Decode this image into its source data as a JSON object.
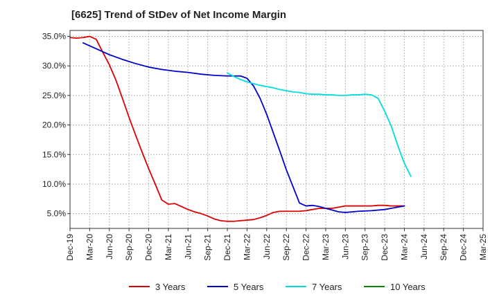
{
  "chart_data": {
    "type": "line",
    "title": "[6625]  Trend of StDev of Net Income Margin",
    "xlabel": "",
    "ylabel": "",
    "x_tick_labels": [
      "Dec-19",
      "Mar-20",
      "Jun-20",
      "Sep-20",
      "Dec-20",
      "Mar-21",
      "Jun-21",
      "Sep-21",
      "Dec-21",
      "Mar-22",
      "Jun-22",
      "Sep-22",
      "Dec-22",
      "Mar-23",
      "Jun-23",
      "Sep-23",
      "Dec-23",
      "Mar-24",
      "Jun-24",
      "Sep-24",
      "Dec-24",
      "Mar-25"
    ],
    "y_ticks": [
      5,
      10,
      15,
      20,
      25,
      30,
      35
    ],
    "y_tick_labels": [
      "5.0%",
      "10.0%",
      "15.0%",
      "20.0%",
      "25.0%",
      "30.0%",
      "35.0%"
    ],
    "ylim": [
      2.5,
      36.0
    ],
    "grid": true,
    "legend_position": "bottom",
    "series": [
      {
        "name": "3 Years",
        "color": "#dd0000",
        "points": [
          [
            0,
            34.8
          ],
          [
            1,
            34.7
          ],
          [
            2,
            34.8
          ],
          [
            3,
            35.0
          ],
          [
            4,
            34.5
          ],
          [
            5,
            32.3
          ],
          [
            6,
            30.2
          ],
          [
            7,
            27.6
          ],
          [
            8,
            24.5
          ],
          [
            9,
            21.3
          ],
          [
            10,
            18.3
          ],
          [
            11,
            15.4
          ],
          [
            12,
            12.6
          ],
          [
            13,
            10.0
          ],
          [
            14,
            7.3
          ],
          [
            15,
            6.6
          ],
          [
            16,
            6.7
          ],
          [
            17,
            6.2
          ],
          [
            18,
            5.7
          ],
          [
            19,
            5.3
          ],
          [
            20,
            5.0
          ],
          [
            21,
            4.6
          ],
          [
            22,
            4.1
          ],
          [
            23,
            3.8
          ],
          [
            24,
            3.7
          ],
          [
            25,
            3.7
          ],
          [
            26,
            3.8
          ],
          [
            27,
            3.9
          ],
          [
            28,
            4.0
          ],
          [
            29,
            4.3
          ],
          [
            30,
            4.7
          ],
          [
            31,
            5.2
          ],
          [
            32,
            5.4
          ],
          [
            33,
            5.4
          ],
          [
            34,
            5.4
          ],
          [
            35,
            5.4
          ],
          [
            36,
            5.5
          ],
          [
            37,
            5.7
          ],
          [
            38,
            5.9
          ],
          [
            39,
            5.9
          ],
          [
            40,
            5.9
          ],
          [
            41,
            6.1
          ],
          [
            42,
            6.3
          ],
          [
            43,
            6.3
          ],
          [
            44,
            6.3
          ],
          [
            45,
            6.3
          ],
          [
            46,
            6.3
          ],
          [
            47,
            6.4
          ],
          [
            48,
            6.4
          ],
          [
            49,
            6.3
          ],
          [
            50,
            6.3
          ],
          [
            51,
            6.3
          ]
        ]
      },
      {
        "name": "5 Years",
        "color": "#0000cc",
        "points": [
          [
            2,
            33.9
          ],
          [
            4,
            32.9
          ],
          [
            6,
            31.9
          ],
          [
            8,
            31.1
          ],
          [
            10,
            30.4
          ],
          [
            12,
            29.8
          ],
          [
            14,
            29.4
          ],
          [
            16,
            29.1
          ],
          [
            18,
            28.9
          ],
          [
            20,
            28.6
          ],
          [
            22,
            28.4
          ],
          [
            24,
            28.3
          ],
          [
            26,
            28.3
          ],
          [
            27,
            27.9
          ],
          [
            28,
            26.6
          ],
          [
            29,
            24.5
          ],
          [
            30,
            21.8
          ],
          [
            31,
            18.7
          ],
          [
            32,
            15.6
          ],
          [
            33,
            12.4
          ],
          [
            34,
            9.6
          ],
          [
            35,
            6.8
          ],
          [
            36,
            6.3
          ],
          [
            37,
            6.4
          ],
          [
            38,
            6.2
          ],
          [
            39,
            5.9
          ],
          [
            40,
            5.6
          ],
          [
            41,
            5.3
          ],
          [
            42,
            5.2
          ],
          [
            43,
            5.3
          ],
          [
            44,
            5.4
          ],
          [
            46,
            5.5
          ],
          [
            48,
            5.7
          ],
          [
            49,
            5.9
          ],
          [
            50,
            6.1
          ],
          [
            51,
            6.3
          ]
        ]
      },
      {
        "name": "7 Years",
        "color": "#00dddd",
        "points": [
          [
            24,
            28.8
          ],
          [
            25,
            28.2
          ],
          [
            26,
            27.7
          ],
          [
            27,
            27.3
          ],
          [
            28,
            27.0
          ],
          [
            29,
            26.7
          ],
          [
            30,
            26.5
          ],
          [
            31,
            26.3
          ],
          [
            32,
            26.0
          ],
          [
            33,
            25.8
          ],
          [
            34,
            25.6
          ],
          [
            35,
            25.5
          ],
          [
            36,
            25.3
          ],
          [
            37,
            25.2
          ],
          [
            38,
            25.2
          ],
          [
            39,
            25.1
          ],
          [
            40,
            25.1
          ],
          [
            41,
            25.0
          ],
          [
            42,
            25.0
          ],
          [
            43,
            25.1
          ],
          [
            44,
            25.1
          ],
          [
            45,
            25.2
          ],
          [
            46,
            25.1
          ],
          [
            47,
            24.5
          ],
          [
            48,
            22.3
          ],
          [
            49,
            19.8
          ],
          [
            50,
            16.5
          ],
          [
            51,
            13.5
          ],
          [
            52,
            11.3
          ]
        ]
      },
      {
        "name": "10 Years",
        "color": "#008800",
        "points": []
      }
    ],
    "x_tick_count": 22,
    "ticks_per_step": 3
  }
}
